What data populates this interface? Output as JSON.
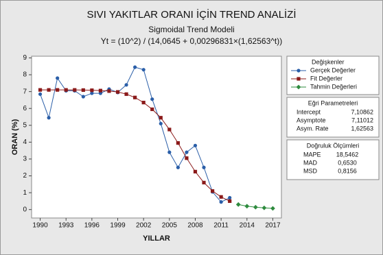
{
  "chart_data": {
    "type": "line",
    "title": "SIVI YAKITLAR ORANI İÇİN TREND ANALİZİ",
    "subtitle": "Sigmoidal Trend Modeli",
    "formula": "Yt = (10^2) / (14,0645 + 0,00296831×(1,62563^t))",
    "x_label": "YILLAR",
    "y_label": "ORAN (%)",
    "x": [
      1990,
      1991,
      1992,
      1993,
      1994,
      1995,
      1996,
      1997,
      1998,
      1999,
      2000,
      2001,
      2002,
      2003,
      2004,
      2005,
      2006,
      2007,
      2008,
      2009,
      2010,
      2011,
      2012,
      2013,
      2014,
      2015,
      2016,
      2017
    ],
    "xlim": [
      1989,
      2018
    ],
    "xticks": [
      1990,
      1993,
      1996,
      1999,
      2002,
      2005,
      2008,
      2011,
      2014,
      2017
    ],
    "ylim": [
      -0.5,
      9.1
    ],
    "yticks": [
      0,
      1,
      2,
      3,
      4,
      5,
      6,
      7,
      8,
      9
    ],
    "legend_title": "Değişkenler",
    "series": [
      {
        "name": "Gerçek Değerler",
        "color": "#2a5ea8",
        "marker": "circle",
        "values": [
          6.85,
          5.45,
          7.8,
          7.05,
          7.05,
          6.7,
          6.9,
          6.9,
          7.15,
          6.95,
          7.4,
          8.45,
          8.3,
          6.55,
          5.1,
          3.4,
          2.5,
          3.4,
          3.8,
          2.5,
          1.05,
          0.45,
          0.7,
          null,
          null,
          null,
          null,
          null
        ]
      },
      {
        "name": "Fit Değerler",
        "color": "#8b1a1a",
        "marker": "square",
        "values": [
          7.1,
          7.1,
          7.1,
          7.1,
          7.1,
          7.09,
          7.08,
          7.06,
          7.03,
          6.98,
          6.85,
          6.65,
          6.35,
          5.95,
          5.45,
          4.75,
          3.95,
          3.05,
          2.25,
          1.6,
          1.1,
          0.75,
          0.5,
          null,
          null,
          null,
          null,
          null
        ]
      },
      {
        "name": "Tahmin Değerleri",
        "color": "#2e8b3e",
        "marker": "diamond",
        "values": [
          null,
          null,
          null,
          null,
          null,
          null,
          null,
          null,
          null,
          null,
          null,
          null,
          null,
          null,
          null,
          null,
          null,
          null,
          null,
          null,
          null,
          null,
          null,
          0.3,
          0.2,
          0.14,
          0.1,
          0.07
        ]
      }
    ],
    "parameters": {
      "title": "Eğri Parametreleri",
      "rows": [
        [
          "Intercept",
          "7,10862"
        ],
        [
          "Asymptote",
          "7,11012"
        ],
        [
          "Asym. Rate",
          "1,62563"
        ]
      ]
    },
    "accuracy": {
      "title": "Doğruluk Ölçümleri",
      "rows": [
        [
          "MAPE",
          "18,5462"
        ],
        [
          "MAD",
          "0,6530"
        ],
        [
          "MSD",
          "0,8156"
        ]
      ]
    }
  }
}
